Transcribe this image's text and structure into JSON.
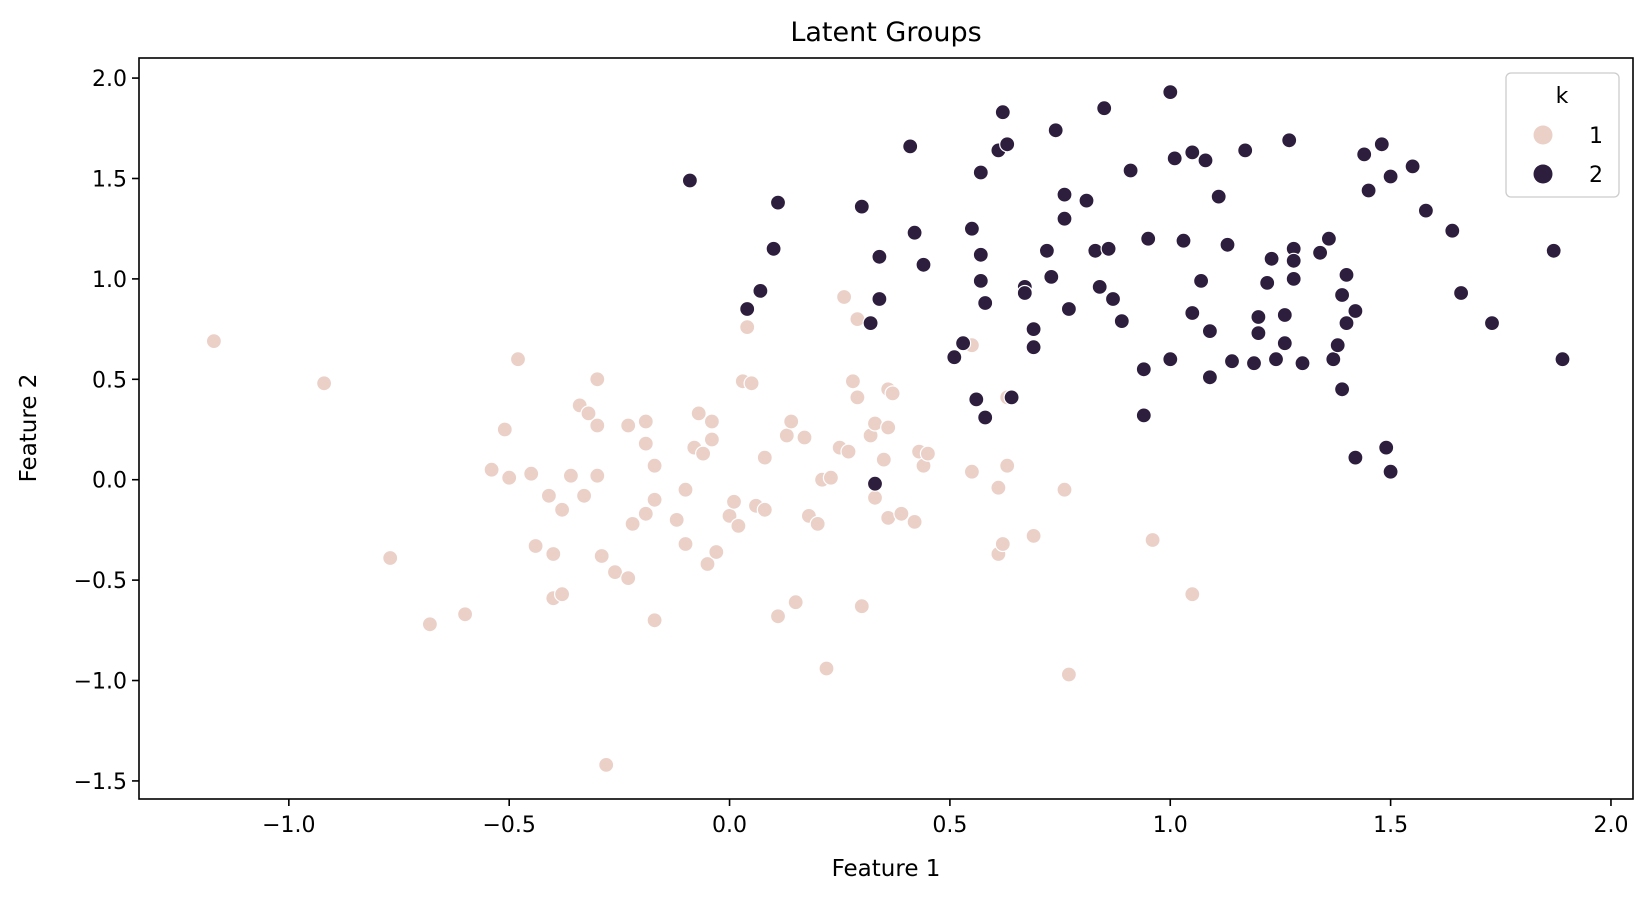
{
  "chart_data": {
    "type": "scatter",
    "title": "Latent Groups",
    "xlabel": "Feature 1",
    "ylabel": "Feature 2",
    "xlim": [
      -1.34,
      2.05
    ],
    "ylim": [
      -1.59,
      2.1
    ],
    "x_ticks": [
      -1.0,
      -0.5,
      0.0,
      0.5,
      1.0,
      1.5,
      2.0
    ],
    "x_tick_labels": [
      "−1.0",
      "−0.5",
      "0.0",
      "0.5",
      "1.0",
      "1.5",
      "2.0"
    ],
    "y_ticks": [
      -1.5,
      -1.0,
      -0.5,
      0.0,
      0.5,
      1.0,
      1.5,
      2.0
    ],
    "y_tick_labels": [
      "−1.5",
      "−1.0",
      "−0.5",
      "0.0",
      "0.5",
      "1.0",
      "1.5",
      "2.0"
    ],
    "grid": false,
    "legend": {
      "title": "k",
      "placement": "top-right"
    },
    "series": [
      {
        "name": "1",
        "color": "#ebd0c8",
        "points": [
          [
            -1.17,
            0.69
          ],
          [
            -0.92,
            0.48
          ],
          [
            -0.77,
            -0.39
          ],
          [
            -0.68,
            -0.72
          ],
          [
            -0.6,
            -0.67
          ],
          [
            -0.54,
            0.05
          ],
          [
            -0.51,
            0.25
          ],
          [
            -0.5,
            0.01
          ],
          [
            -0.48,
            0.6
          ],
          [
            -0.45,
            0.03
          ],
          [
            -0.44,
            -0.33
          ],
          [
            -0.41,
            -0.08
          ],
          [
            -0.4,
            -0.37
          ],
          [
            -0.4,
            -0.59
          ],
          [
            -0.38,
            -0.57
          ],
          [
            -0.38,
            -0.15
          ],
          [
            -0.36,
            0.02
          ],
          [
            -0.34,
            0.37
          ],
          [
            -0.33,
            -0.08
          ],
          [
            -0.32,
            0.33
          ],
          [
            -0.3,
            0.5
          ],
          [
            -0.3,
            0.27
          ],
          [
            -0.3,
            0.02
          ],
          [
            -0.29,
            -0.38
          ],
          [
            -0.28,
            -1.42
          ],
          [
            -0.26,
            -0.46
          ],
          [
            -0.23,
            0.27
          ],
          [
            -0.23,
            -0.49
          ],
          [
            -0.22,
            -0.22
          ],
          [
            -0.19,
            0.29
          ],
          [
            -0.19,
            0.18
          ],
          [
            -0.19,
            -0.17
          ],
          [
            -0.17,
            0.07
          ],
          [
            -0.17,
            -0.1
          ],
          [
            -0.17,
            -0.7
          ],
          [
            -0.12,
            -0.2
          ],
          [
            -0.1,
            -0.32
          ],
          [
            -0.1,
            -0.05
          ],
          [
            -0.08,
            0.16
          ],
          [
            -0.07,
            0.33
          ],
          [
            -0.06,
            0.13
          ],
          [
            -0.05,
            -0.42
          ],
          [
            -0.04,
            0.29
          ],
          [
            -0.04,
            0.2
          ],
          [
            -0.03,
            -0.36
          ],
          [
            0.0,
            -0.18
          ],
          [
            0.01,
            -0.11
          ],
          [
            0.02,
            -0.23
          ],
          [
            0.03,
            0.49
          ],
          [
            0.04,
            0.76
          ],
          [
            0.05,
            0.48
          ],
          [
            0.06,
            -0.13
          ],
          [
            0.08,
            -0.15
          ],
          [
            0.08,
            0.11
          ],
          [
            0.11,
            -0.68
          ],
          [
            0.13,
            0.22
          ],
          [
            0.14,
            0.29
          ],
          [
            0.15,
            -0.61
          ],
          [
            0.17,
            0.21
          ],
          [
            0.18,
            -0.18
          ],
          [
            0.2,
            -0.22
          ],
          [
            0.21,
            0.0
          ],
          [
            0.22,
            -0.94
          ],
          [
            0.23,
            0.01
          ],
          [
            0.25,
            0.16
          ],
          [
            0.26,
            0.91
          ],
          [
            0.27,
            0.14
          ],
          [
            0.28,
            0.49
          ],
          [
            0.29,
            0.8
          ],
          [
            0.29,
            0.41
          ],
          [
            0.3,
            -0.63
          ],
          [
            0.32,
            0.22
          ],
          [
            0.33,
            -0.09
          ],
          [
            0.33,
            0.28
          ],
          [
            0.35,
            0.1
          ],
          [
            0.36,
            0.45
          ],
          [
            0.36,
            0.26
          ],
          [
            0.36,
            -0.19
          ],
          [
            0.37,
            0.43
          ],
          [
            0.39,
            -0.17
          ],
          [
            0.42,
            -0.21
          ],
          [
            0.43,
            0.14
          ],
          [
            0.44,
            0.07
          ],
          [
            0.45,
            0.13
          ],
          [
            0.55,
            0.67
          ],
          [
            0.55,
            0.04
          ],
          [
            0.61,
            -0.04
          ],
          [
            0.61,
            -0.37
          ],
          [
            0.62,
            -0.32
          ],
          [
            0.63,
            0.41
          ],
          [
            0.63,
            0.07
          ],
          [
            0.69,
            -0.28
          ],
          [
            0.76,
            -0.05
          ],
          [
            0.77,
            -0.97
          ],
          [
            0.96,
            -0.3
          ],
          [
            1.05,
            -0.57
          ]
        ]
      },
      {
        "name": "2",
        "color": "#2d1e3e",
        "points": [
          [
            -0.09,
            1.49
          ],
          [
            0.04,
            0.85
          ],
          [
            0.07,
            0.94
          ],
          [
            0.1,
            1.15
          ],
          [
            0.11,
            1.38
          ],
          [
            0.3,
            1.36
          ],
          [
            0.32,
            0.78
          ],
          [
            0.33,
            -0.02
          ],
          [
            0.34,
            1.11
          ],
          [
            0.34,
            0.9
          ],
          [
            0.41,
            1.66
          ],
          [
            0.42,
            1.23
          ],
          [
            0.44,
            1.07
          ],
          [
            0.51,
            0.61
          ],
          [
            0.53,
            0.68
          ],
          [
            0.55,
            1.25
          ],
          [
            0.56,
            0.4
          ],
          [
            0.57,
            1.53
          ],
          [
            0.57,
            0.99
          ],
          [
            0.57,
            1.12
          ],
          [
            0.58,
            0.31
          ],
          [
            0.58,
            0.88
          ],
          [
            0.61,
            1.64
          ],
          [
            0.62,
            1.83
          ],
          [
            0.63,
            1.67
          ],
          [
            0.64,
            0.41
          ],
          [
            0.67,
            0.96
          ],
          [
            0.67,
            0.93
          ],
          [
            0.69,
            0.66
          ],
          [
            0.69,
            0.75
          ],
          [
            0.72,
            1.14
          ],
          [
            0.73,
            1.01
          ],
          [
            0.74,
            1.74
          ],
          [
            0.76,
            1.3
          ],
          [
            0.76,
            1.42
          ],
          [
            0.77,
            0.85
          ],
          [
            0.81,
            1.39
          ],
          [
            0.83,
            1.14
          ],
          [
            0.84,
            0.96
          ],
          [
            0.85,
            1.85
          ],
          [
            0.86,
            1.15
          ],
          [
            0.87,
            0.9
          ],
          [
            0.89,
            0.79
          ],
          [
            0.91,
            1.54
          ],
          [
            0.94,
            0.55
          ],
          [
            0.94,
            0.32
          ],
          [
            0.95,
            1.2
          ],
          [
            1.0,
            1.93
          ],
          [
            1.0,
            0.6
          ],
          [
            1.01,
            1.6
          ],
          [
            1.03,
            1.19
          ],
          [
            1.05,
            1.63
          ],
          [
            1.05,
            0.83
          ],
          [
            1.07,
            0.99
          ],
          [
            1.08,
            1.59
          ],
          [
            1.09,
            0.74
          ],
          [
            1.09,
            0.51
          ],
          [
            1.11,
            1.41
          ],
          [
            1.13,
            1.17
          ],
          [
            1.14,
            0.59
          ],
          [
            1.17,
            1.64
          ],
          [
            1.19,
            0.58
          ],
          [
            1.2,
            0.81
          ],
          [
            1.2,
            0.73
          ],
          [
            1.22,
            0.98
          ],
          [
            1.23,
            1.1
          ],
          [
            1.24,
            0.6
          ],
          [
            1.26,
            0.68
          ],
          [
            1.26,
            0.82
          ],
          [
            1.27,
            1.69
          ],
          [
            1.28,
            1.15
          ],
          [
            1.28,
            1.09
          ],
          [
            1.28,
            1.0
          ],
          [
            1.3,
            0.58
          ],
          [
            1.34,
            1.13
          ],
          [
            1.36,
            1.2
          ],
          [
            1.37,
            0.6
          ],
          [
            1.38,
            0.67
          ],
          [
            1.39,
            0.45
          ],
          [
            1.39,
            0.92
          ],
          [
            1.4,
            0.78
          ],
          [
            1.4,
            1.02
          ],
          [
            1.42,
            0.84
          ],
          [
            1.42,
            0.11
          ],
          [
            1.44,
            1.62
          ],
          [
            1.45,
            1.44
          ],
          [
            1.48,
            1.67
          ],
          [
            1.49,
            0.16
          ],
          [
            1.5,
            1.51
          ],
          [
            1.5,
            0.04
          ],
          [
            1.55,
            1.56
          ],
          [
            1.58,
            1.34
          ],
          [
            1.64,
            1.24
          ],
          [
            1.66,
            0.93
          ],
          [
            1.73,
            0.78
          ],
          [
            1.87,
            1.14
          ],
          [
            1.89,
            0.6
          ]
        ]
      }
    ]
  }
}
